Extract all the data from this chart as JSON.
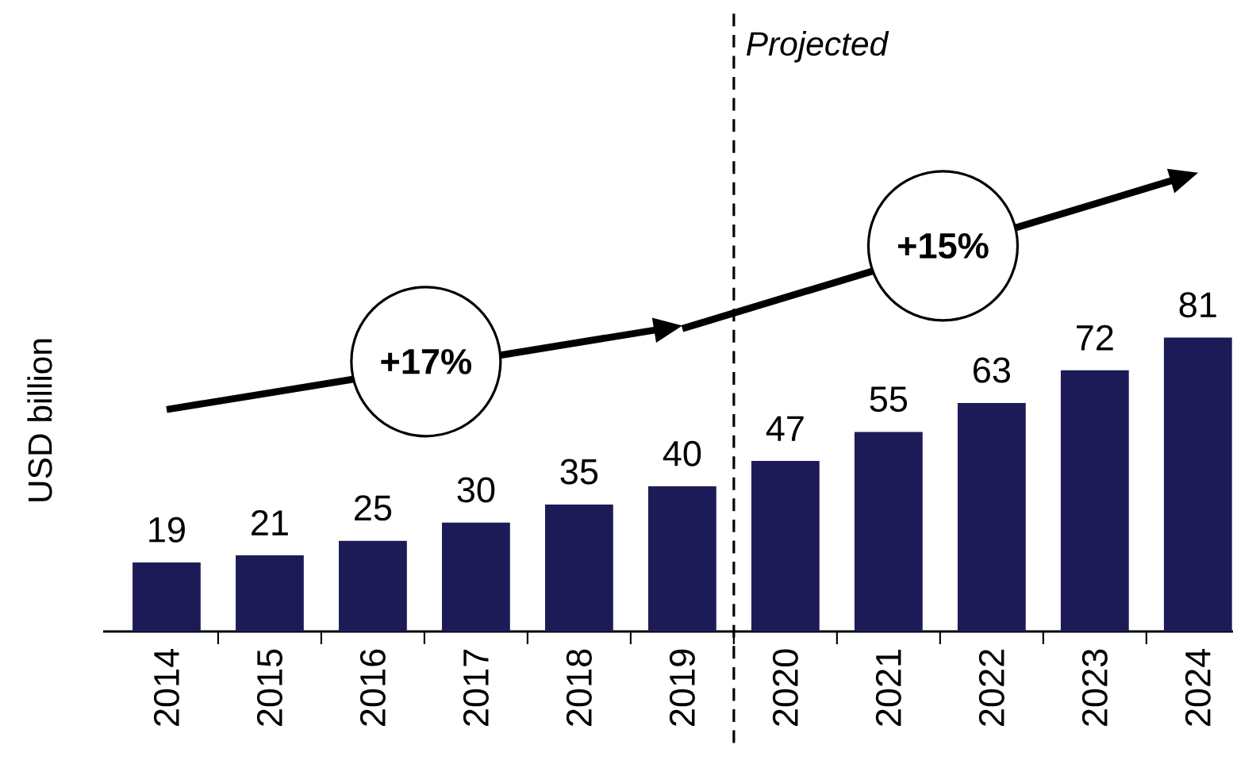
{
  "chart_data": {
    "type": "bar",
    "ylabel": "USD billion",
    "categories": [
      "2014",
      "2015",
      "2016",
      "2017",
      "2018",
      "2019",
      "2020",
      "2021",
      "2022",
      "2023",
      "2024"
    ],
    "values": [
      19,
      21,
      25,
      30,
      35,
      40,
      47,
      55,
      63,
      72,
      81
    ],
    "color": "#1d1b57",
    "data_labels": true,
    "tick_labels": "x",
    "annotations": [
      "+17%",
      "+15%",
      "Projected"
    ]
  }
}
